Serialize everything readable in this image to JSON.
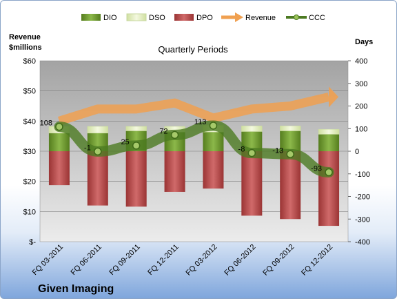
{
  "chart_data": {
    "type": "bar",
    "title": "Quarterly Periods",
    "company": "Given Imaging",
    "left_axis_label": [
      "Revenue",
      "$millions"
    ],
    "right_axis_label": "Days",
    "categories": [
      "FQ 03-2011",
      "FQ 06-2011",
      "FQ 09-2011",
      "FQ 12-2011",
      "FQ 03-2012",
      "FQ 06-2012",
      "FQ 09-2012",
      "FQ 12-2012"
    ],
    "left_ticks": [
      "$-",
      "$10",
      "$20",
      "$30",
      "$40",
      "$50",
      "$60"
    ],
    "right_ticks": [
      "-400",
      "-300",
      "-200",
      "-100",
      "0",
      "100",
      "200",
      "300",
      "400"
    ],
    "left_range": [
      0,
      60
    ],
    "right_range": [
      -400,
      400
    ],
    "series": [
      {
        "name": "DIO",
        "axis": "right",
        "values": [
          80,
          80,
          90,
          85,
          85,
          87,
          90,
          75
        ],
        "color": "#6f9a2f"
      },
      {
        "name": "DSO",
        "axis": "right",
        "values": [
          30,
          30,
          20,
          25,
          30,
          25,
          22,
          22
        ],
        "color": "#e6f0c0"
      },
      {
        "name": "DPO",
        "axis": "right",
        "values": [
          -150,
          -240,
          -245,
          -180,
          -165,
          -285,
          -300,
          -330
        ],
        "color": "#b84a4a"
      },
      {
        "name": "Revenue",
        "axis": "left",
        "values": [
          40,
          44,
          44,
          46,
          41,
          44,
          45,
          48
        ],
        "color": "#f0a050"
      },
      {
        "name": "CCC",
        "axis": "right",
        "values": [
          108,
          -1,
          25,
          72,
          113,
          -8,
          -13,
          -93
        ],
        "color": "#4c7a22"
      }
    ],
    "data_labels": [
      "108",
      "-1",
      "25",
      "72",
      "113",
      "-8",
      "-13",
      "-93"
    ],
    "legend_position": "top"
  }
}
